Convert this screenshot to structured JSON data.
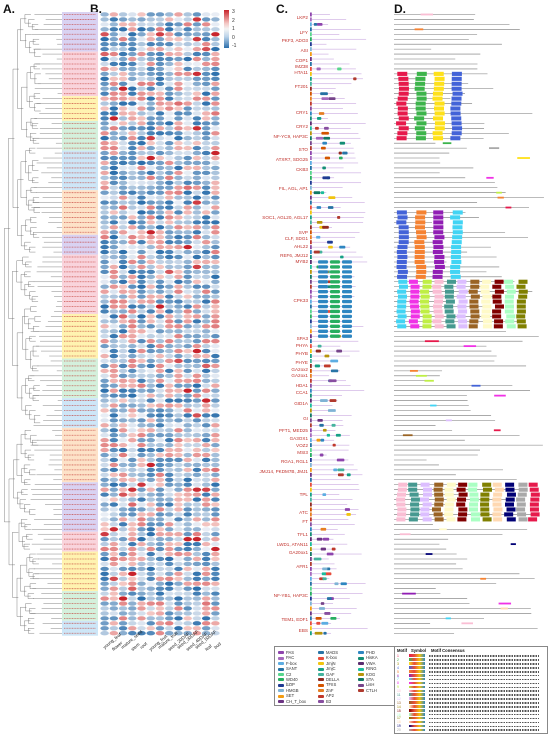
{
  "panels": {
    "a": "A.",
    "b": "B.",
    "c": "C.",
    "d": "D."
  },
  "colorbar": {
    "ticks": [
      "3",
      "2",
      "1",
      "0",
      "-1"
    ],
    "colors": {
      "high": "#c8232b",
      "mid": "#f4f4f4",
      "low": "#2c6fab"
    }
  },
  "heatmap_columns": [
    "young_leaf",
    "flower",
    "mature_seed",
    "stem",
    "root",
    "young_fruit",
    "mature_fruit",
    "seed_20DAF",
    "seed_30DAF",
    "seed_40DAF",
    "seed_50DAF",
    "leaf",
    "bud"
  ],
  "gene_groups": [
    {
      "label": "LKP2",
      "top": 17
    },
    {
      "label": "LFY",
      "top": 32
    },
    {
      "label": "PKF3, ADO3",
      "top": 40
    },
    {
      "label": "ASI",
      "top": 50
    },
    {
      "label": "COP1",
      "top": 60
    },
    {
      "label": "IMZ38",
      "top": 66
    },
    {
      "label": "HTA11",
      "top": 72
    },
    {
      "label": "FT201",
      "top": 86
    },
    {
      "label": "CRY1",
      "top": 112
    },
    {
      "label": "CRY2",
      "top": 126
    },
    {
      "label": "NF-YC9, HAP3C",
      "top": 136
    },
    {
      "label": "STO",
      "top": 149
    },
    {
      "label": "ATXR7, SDG25",
      "top": 159
    },
    {
      "label": "CKB3",
      "top": 169
    },
    {
      "label": "FIL, AGL, AP1",
      "top": 188
    },
    {
      "label": "SOC1, AGL20, AGL17",
      "top": 217
    },
    {
      "label": "SVP",
      "top": 232
    },
    {
      "label": "CLF, SDG1",
      "top": 238
    },
    {
      "label": "AHL22",
      "top": 246
    },
    {
      "label": "REF6, JMJ12",
      "top": 255
    },
    {
      "label": "MYB2",
      "top": 261
    },
    {
      "label": "CPK33",
      "top": 300
    },
    {
      "label": "SPA3",
      "top": 338
    },
    {
      "label": "PHYA",
      "top": 345
    },
    {
      "label": "PHYB",
      "top": 353
    },
    {
      "label": "PHYE",
      "top": 362
    },
    {
      "label": "GA2ox2",
      "top": 369
    },
    {
      "label": "GA2ox1",
      "top": 375
    },
    {
      "label": "HDA1",
      "top": 385
    },
    {
      "label": "CCA1",
      "top": 392
    },
    {
      "label": "GID1A",
      "top": 403
    },
    {
      "label": "GI",
      "top": 418
    },
    {
      "label": "PFT1, MED25",
      "top": 430
    },
    {
      "label": "GA3OX1",
      "top": 438
    },
    {
      "label": "VOZ2",
      "top": 445
    },
    {
      "label": "MSI3",
      "top": 452
    },
    {
      "label": "RGA1, RGL1",
      "top": 461
    },
    {
      "label": "JMJ14, PKDM7B, JMJ1",
      "top": 471
    },
    {
      "label": "TPL",
      "top": 494
    },
    {
      "label": "ATC",
      "top": 512
    },
    {
      "label": "FT",
      "top": 521
    },
    {
      "label": "TFL1",
      "top": 534
    },
    {
      "label": "LWD1, ATAN11",
      "top": 544
    },
    {
      "label": "GA20ox1",
      "top": 552
    },
    {
      "label": "AFR1",
      "top": 566
    },
    {
      "label": "NF-YB1, HAP3C",
      "top": 595
    },
    {
      "label": "TEM1, EDF1",
      "top": 619
    },
    {
      "label": "EBS",
      "top": 630
    }
  ],
  "domain_legend": [
    {
      "name": "PAS",
      "color": "#8e44ad"
    },
    {
      "name": "PAC",
      "color": "#a569bd"
    },
    {
      "name": "F-box",
      "color": "#5dade2"
    },
    {
      "name": "SANT",
      "color": "#2471a3"
    },
    {
      "name": "C2",
      "color": "#58d68d"
    },
    {
      "name": "WD40",
      "color": "#27ae60"
    },
    {
      "name": "bZIP",
      "color": "#1f3a93"
    },
    {
      "name": "HMGB",
      "color": "#7fb3d5"
    },
    {
      "name": "SET",
      "color": "#f39c12"
    },
    {
      "name": "CH_T_box",
      "color": "#6c3483"
    },
    {
      "name": "MADS",
      "color": "#2874a6"
    },
    {
      "name": "K-box",
      "color": "#e74c3c"
    },
    {
      "name": "JmjN",
      "color": "#f1c40f"
    },
    {
      "name": "JmjC",
      "color": "#16a085"
    },
    {
      "name": "GAF",
      "color": "#45b39d"
    },
    {
      "name": "DELLA",
      "color": "#922b21"
    },
    {
      "name": "TFIIS",
      "color": "#d35400"
    },
    {
      "name": "ZnF",
      "color": "#e67e22"
    },
    {
      "name": "AP2",
      "color": "#c0392b"
    },
    {
      "name": "B3",
      "color": "#884ea0"
    },
    {
      "name": "PHD",
      "color": "#2e86c1"
    },
    {
      "name": "HisKA",
      "color": "#138d75"
    },
    {
      "name": "VWA",
      "color": "#5b2c6f"
    },
    {
      "name": "RING",
      "color": "#1abc9c"
    },
    {
      "name": "KOG",
      "color": "#b7950b"
    },
    {
      "name": "STA",
      "color": "#117864"
    },
    {
      "name": "LisH",
      "color": "#76448a"
    },
    {
      "name": "CTLH",
      "color": "#b03a2e"
    }
  ],
  "motif_table": {
    "headers": [
      "Motif",
      "Symbol",
      "Motif Consensus"
    ],
    "rows": [
      {
        "id": "1",
        "color": "#e6194b"
      },
      {
        "id": "2",
        "color": "#3cb44b"
      },
      {
        "id": "3",
        "color": "#ffe119"
      },
      {
        "id": "4",
        "color": "#4363d8"
      },
      {
        "id": "5",
        "color": "#f58231"
      },
      {
        "id": "6",
        "color": "#911eb4"
      },
      {
        "id": "7",
        "color": "#42d4f4"
      },
      {
        "id": "8",
        "color": "#f032e6"
      },
      {
        "id": "9",
        "color": "#bfef45"
      },
      {
        "id": "10",
        "color": "#fabed4"
      },
      {
        "id": "11",
        "color": "#469990"
      },
      {
        "id": "12",
        "color": "#dcbeff"
      },
      {
        "id": "13",
        "color": "#9a6324"
      },
      {
        "id": "14",
        "color": "#fffac8"
      },
      {
        "id": "15",
        "color": "#800000"
      },
      {
        "id": "16",
        "color": "#aaffc3"
      },
      {
        "id": "17",
        "color": "#808000"
      },
      {
        "id": "18",
        "color": "#ffd8b1"
      },
      {
        "id": "19",
        "color": "#000075"
      },
      {
        "id": "20",
        "color": "#a9a9a9"
      }
    ]
  },
  "group_bands": [
    "#d9d2f2",
    "#f9d4dc",
    "#fff3b0",
    "#d4f0dc",
    "#cde6f7",
    "#fde2c8"
  ]
}
